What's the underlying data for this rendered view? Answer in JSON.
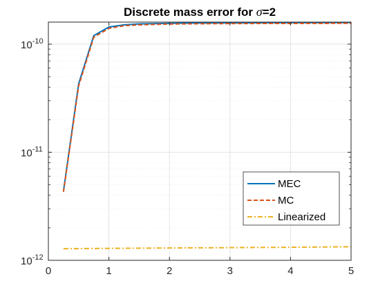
{
  "chart_data": {
    "type": "line",
    "title_prefix": "Discrete mass error for ",
    "title_symbol": "σ",
    "title_suffix": "=2",
    "xlabel": "",
    "ylabel": "",
    "xlim": [
      0,
      5
    ],
    "ylim": [
      1e-12,
      1.6e-10
    ],
    "yscale": "log",
    "grid": true,
    "minor_grid": true,
    "legend_position": "bottom-right",
    "x_ticks": [
      {
        "value": 0,
        "label": "0"
      },
      {
        "value": 1,
        "label": "1"
      },
      {
        "value": 2,
        "label": "2"
      },
      {
        "value": 3,
        "label": "3"
      },
      {
        "value": 4,
        "label": "4"
      },
      {
        "value": 5,
        "label": "5"
      }
    ],
    "y_ticks": [
      {
        "value": 1e-12,
        "base": "10",
        "exp": "-12"
      },
      {
        "value": 1e-11,
        "base": "10",
        "exp": "-11"
      },
      {
        "value": 1e-10,
        "base": "10",
        "exp": "-10"
      }
    ],
    "series": [
      {
        "name": "MEC",
        "color": "#0072BD",
        "style": "solid",
        "x": [
          0.25,
          0.5,
          0.75,
          1.0,
          1.25,
          1.5,
          2.0,
          2.5,
          3.0,
          3.5,
          4.0,
          4.5,
          5.0
        ],
        "y": [
          4.4e-12,
          4.3e-11,
          1.2e-10,
          1.44e-10,
          1.51e-10,
          1.54e-10,
          1.56e-10,
          1.57e-10,
          1.575e-10,
          1.578e-10,
          1.58e-10,
          1.582e-10,
          1.585e-10
        ]
      },
      {
        "name": "MC",
        "color": "#D95319",
        "style": "dashed",
        "x": [
          0.25,
          0.5,
          0.75,
          1.0,
          1.25,
          1.5,
          2.0,
          2.5,
          3.0,
          3.5,
          4.0,
          4.5,
          5.0
        ],
        "y": [
          4.3e-12,
          4.1e-11,
          1.16e-10,
          1.4e-10,
          1.48e-10,
          1.51e-10,
          1.535e-10,
          1.545e-10,
          1.55e-10,
          1.553e-10,
          1.555e-10,
          1.557e-10,
          1.56e-10
        ]
      },
      {
        "name": "Linearized",
        "color": "#EDB120",
        "style": "dashdot",
        "x": [
          0.25,
          1.0,
          2.0,
          3.0,
          4.0,
          5.0
        ],
        "y": [
          1.28e-12,
          1.29e-12,
          1.3e-12,
          1.31e-12,
          1.32e-12,
          1.335e-12
        ]
      }
    ]
  }
}
